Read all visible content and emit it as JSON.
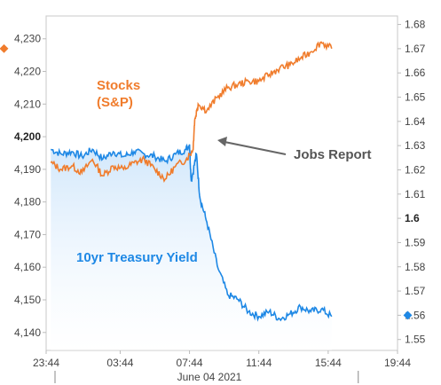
{
  "chart_data": {
    "type": "line",
    "title": "",
    "date_label": "June 04 2021",
    "x_ticks": [
      "23:44",
      "03:44",
      "07:44",
      "11:44",
      "15:44",
      "19:44"
    ],
    "x_tick_hours": [
      -0.27,
      4.0,
      8.0,
      12.0,
      16.0,
      20.0
    ],
    "x_range_hours": [
      -0.27,
      20.0
    ],
    "left_axis": {
      "ticks": [
        "4,140",
        "4,150",
        "4,160",
        "4,170",
        "4,180",
        "4,190",
        "4,200",
        "4,210",
        "4,220",
        "4,230"
      ],
      "values": [
        4140,
        4150,
        4160,
        4170,
        4180,
        4190,
        4200,
        4210,
        4220,
        4230
      ],
      "bold_tick": "4,200",
      "range": [
        4134.5,
        4237
      ]
    },
    "right_axis": {
      "ticks": [
        "1.55",
        "1.56",
        "1.57",
        "1.58",
        "1.59",
        "1.6",
        "1.61",
        "1.62",
        "1.63",
        "1.64",
        "1.65",
        "1.66",
        "1.67",
        "1.68"
      ],
      "values": [
        1.55,
        1.56,
        1.57,
        1.58,
        1.59,
        1.6,
        1.61,
        1.62,
        1.63,
        1.64,
        1.65,
        1.66,
        1.67,
        1.68
      ],
      "bold_tick": "1.6",
      "range": [
        1.5455,
        1.6835
      ]
    },
    "series": [
      {
        "name": "Stocks (S&P)",
        "axis": "left",
        "color": "#f07c2c",
        "points": [
          [
            0.0,
            4192
          ],
          [
            0.6,
            4190
          ],
          [
            1.2,
            4191
          ],
          [
            1.8,
            4189
          ],
          [
            2.4,
            4193
          ],
          [
            3.0,
            4188
          ],
          [
            3.6,
            4191
          ],
          [
            4.2,
            4190
          ],
          [
            4.8,
            4192
          ],
          [
            5.4,
            4193
          ],
          [
            6.0,
            4190
          ],
          [
            6.6,
            4187
          ],
          [
            7.2,
            4191
          ],
          [
            7.8,
            4193
          ],
          [
            8.2,
            4196
          ],
          [
            8.3,
            4205
          ],
          [
            8.5,
            4210
          ],
          [
            9.0,
            4208
          ],
          [
            9.6,
            4212
          ],
          [
            10.2,
            4215
          ],
          [
            10.8,
            4216
          ],
          [
            11.4,
            4217
          ],
          [
            12.0,
            4217
          ],
          [
            12.6,
            4219
          ],
          [
            13.2,
            4221
          ],
          [
            13.8,
            4222
          ],
          [
            14.4,
            4224
          ],
          [
            15.0,
            4226
          ],
          [
            15.6,
            4229
          ],
          [
            16.2,
            4227
          ]
        ]
      },
      {
        "name": "10yr Treasury Yield",
        "axis": "right",
        "color": "#1e88e5",
        "points": [
          [
            0.0,
            1.6285
          ],
          [
            0.6,
            1.6265
          ],
          [
            1.2,
            1.6275
          ],
          [
            1.8,
            1.6255
          ],
          [
            2.4,
            1.6285
          ],
          [
            3.0,
            1.6245
          ],
          [
            3.6,
            1.6275
          ],
          [
            4.2,
            1.6255
          ],
          [
            4.8,
            1.6275
          ],
          [
            5.4,
            1.6265
          ],
          [
            6.0,
            1.6255
          ],
          [
            6.6,
            1.6235
          ],
          [
            7.2,
            1.6265
          ],
          [
            7.8,
            1.6285
          ],
          [
            8.0,
            1.6305
          ],
          [
            8.1,
            1.6155
          ],
          [
            8.4,
            1.6265
          ],
          [
            8.6,
            1.6085
          ],
          [
            9.0,
            1.5985
          ],
          [
            9.6,
            1.5805
          ],
          [
            10.2,
            1.5685
          ],
          [
            10.8,
            1.5665
          ],
          [
            11.4,
            1.5615
          ],
          [
            12.0,
            1.5595
          ],
          [
            12.6,
            1.5615
          ],
          [
            13.2,
            1.5585
          ],
          [
            13.8,
            1.5605
          ],
          [
            14.4,
            1.5635
          ],
          [
            15.0,
            1.5615
          ],
          [
            15.6,
            1.5625
          ],
          [
            16.2,
            1.5595
          ]
        ]
      }
    ],
    "annotations": {
      "stocks_label_line1": "Stocks",
      "stocks_label_line2": "(S&P)",
      "jobs_report": "Jobs Report",
      "yield_label": "10yr Treasury Yield"
    },
    "markers": {
      "left_value": 4227,
      "right_value": 1.56
    },
    "colors": {
      "stocks": "#f07c2c",
      "yield": "#1e88e5",
      "fill": "#cfe6fb",
      "arrow": "#666666"
    },
    "grid": false,
    "legend": "none"
  }
}
